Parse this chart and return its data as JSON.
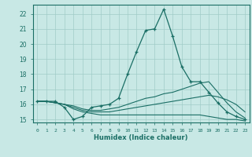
{
  "xlabel": "Humidex (Indice chaleur)",
  "xlim": [
    -0.5,
    23.5
  ],
  "ylim": [
    14.8,
    22.6
  ],
  "yticks": [
    15,
    16,
    17,
    18,
    19,
    20,
    21,
    22
  ],
  "xticks": [
    0,
    1,
    2,
    3,
    4,
    5,
    6,
    7,
    8,
    9,
    10,
    11,
    12,
    13,
    14,
    15,
    16,
    17,
    18,
    19,
    20,
    21,
    22,
    23
  ],
  "bg_color": "#c8e8e5",
  "grid_color": "#a0ccc8",
  "line_color": "#1a6e65",
  "series": [
    [
      16.2,
      16.2,
      16.2,
      15.8,
      15.0,
      15.2,
      15.8,
      15.9,
      16.0,
      16.4,
      18.0,
      19.5,
      20.9,
      21.0,
      22.3,
      20.5,
      18.5,
      17.5,
      17.5,
      16.8,
      16.1,
      15.5,
      15.2,
      15.0
    ],
    [
      16.2,
      16.2,
      16.1,
      16.0,
      15.9,
      15.7,
      15.6,
      15.6,
      15.7,
      15.8,
      16.0,
      16.2,
      16.4,
      16.5,
      16.7,
      16.8,
      17.0,
      17.2,
      17.4,
      17.5,
      16.8,
      16.1,
      15.5,
      15.1
    ],
    [
      16.2,
      16.2,
      16.1,
      16.0,
      15.8,
      15.6,
      15.5,
      15.5,
      15.5,
      15.6,
      15.7,
      15.8,
      15.9,
      16.0,
      16.1,
      16.2,
      16.3,
      16.4,
      16.5,
      16.6,
      16.5,
      16.3,
      16.0,
      15.5
    ],
    [
      16.2,
      16.2,
      16.1,
      16.0,
      15.7,
      15.5,
      15.4,
      15.3,
      15.3,
      15.3,
      15.3,
      15.3,
      15.3,
      15.3,
      15.3,
      15.3,
      15.3,
      15.3,
      15.3,
      15.2,
      15.1,
      15.0,
      15.0,
      14.9
    ]
  ]
}
